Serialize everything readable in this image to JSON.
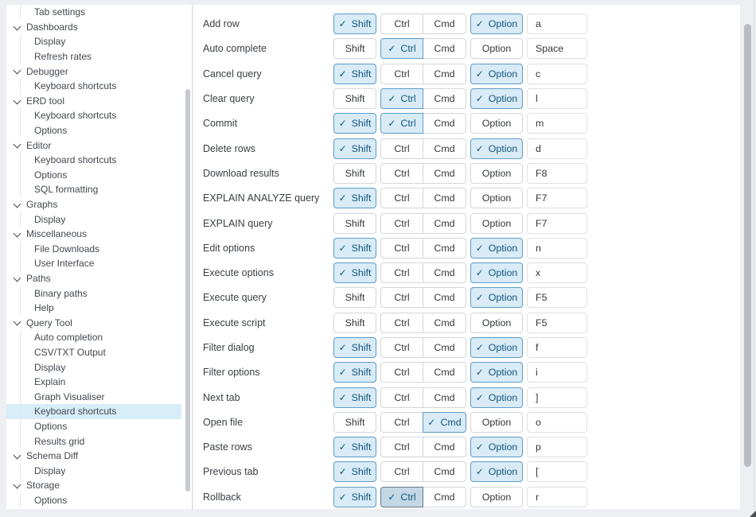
{
  "sidebar": {
    "items": [
      {
        "label": "Tab settings",
        "type": "child",
        "selected": false
      },
      {
        "label": "Dashboards",
        "type": "parent",
        "selected": false
      },
      {
        "label": "Display",
        "type": "child",
        "selected": false
      },
      {
        "label": "Refresh rates",
        "type": "child",
        "selected": false
      },
      {
        "label": "Debugger",
        "type": "parent",
        "selected": false
      },
      {
        "label": "Keyboard shortcuts",
        "type": "child",
        "selected": false
      },
      {
        "label": "ERD tool",
        "type": "parent",
        "selected": false
      },
      {
        "label": "Keyboard shortcuts",
        "type": "child",
        "selected": false
      },
      {
        "label": "Options",
        "type": "child",
        "selected": false
      },
      {
        "label": "Editor",
        "type": "parent",
        "selected": false
      },
      {
        "label": "Keyboard shortcuts",
        "type": "child",
        "selected": false
      },
      {
        "label": "Options",
        "type": "child",
        "selected": false
      },
      {
        "label": "SQL formatting",
        "type": "child",
        "selected": false
      },
      {
        "label": "Graphs",
        "type": "parent",
        "selected": false
      },
      {
        "label": "Display",
        "type": "child",
        "selected": false
      },
      {
        "label": "Miscellaneous",
        "type": "parent",
        "selected": false
      },
      {
        "label": "File Downloads",
        "type": "child",
        "selected": false
      },
      {
        "label": "User Interface",
        "type": "child",
        "selected": false
      },
      {
        "label": "Paths",
        "type": "parent",
        "selected": false
      },
      {
        "label": "Binary paths",
        "type": "child",
        "selected": false
      },
      {
        "label": "Help",
        "type": "child",
        "selected": false
      },
      {
        "label": "Query Tool",
        "type": "parent",
        "selected": false
      },
      {
        "label": "Auto completion",
        "type": "child",
        "selected": false
      },
      {
        "label": "CSV/TXT Output",
        "type": "child",
        "selected": false
      },
      {
        "label": "Display",
        "type": "child",
        "selected": false
      },
      {
        "label": "Explain",
        "type": "child",
        "selected": false
      },
      {
        "label": "Graph Visualiser",
        "type": "child",
        "selected": false
      },
      {
        "label": "Keyboard shortcuts",
        "type": "child",
        "selected": true
      },
      {
        "label": "Options",
        "type": "child",
        "selected": false
      },
      {
        "label": "Results grid",
        "type": "child",
        "selected": false
      },
      {
        "label": "Schema Diff",
        "type": "parent",
        "selected": false
      },
      {
        "label": "Display",
        "type": "child",
        "selected": false
      },
      {
        "label": "Storage",
        "type": "parent",
        "selected": false
      },
      {
        "label": "Options",
        "type": "child",
        "selected": false
      }
    ]
  },
  "shortcuts": {
    "modifier_labels": {
      "shift": "Shift",
      "ctrl": "Ctrl",
      "cmd": "Cmd",
      "option": "Option"
    },
    "check_glyph": "✓",
    "rows": [
      {
        "label": "Add row",
        "shift": true,
        "ctrl": false,
        "cmd": false,
        "option": true,
        "key": "a",
        "ctrl_active": false
      },
      {
        "label": "Auto complete",
        "shift": false,
        "ctrl": true,
        "cmd": false,
        "option": false,
        "key": "Space",
        "ctrl_active": false
      },
      {
        "label": "Cancel query",
        "shift": true,
        "ctrl": false,
        "cmd": false,
        "option": true,
        "key": "c",
        "ctrl_active": false
      },
      {
        "label": "Clear query",
        "shift": false,
        "ctrl": true,
        "cmd": false,
        "option": true,
        "key": "l",
        "ctrl_active": false
      },
      {
        "label": "Commit",
        "shift": true,
        "ctrl": true,
        "cmd": false,
        "option": false,
        "key": "m",
        "ctrl_active": false
      },
      {
        "label": "Delete rows",
        "shift": true,
        "ctrl": false,
        "cmd": false,
        "option": true,
        "key": "d",
        "ctrl_active": false
      },
      {
        "label": "Download results",
        "shift": false,
        "ctrl": false,
        "cmd": false,
        "option": false,
        "key": "F8",
        "ctrl_active": false
      },
      {
        "label": "EXPLAIN ANALYZE query",
        "shift": true,
        "ctrl": false,
        "cmd": false,
        "option": false,
        "key": "F7",
        "ctrl_active": false
      },
      {
        "label": "EXPLAIN query",
        "shift": false,
        "ctrl": false,
        "cmd": false,
        "option": false,
        "key": "F7",
        "ctrl_active": false
      },
      {
        "label": "Edit options",
        "shift": true,
        "ctrl": false,
        "cmd": false,
        "option": true,
        "key": "n",
        "ctrl_active": false
      },
      {
        "label": "Execute options",
        "shift": true,
        "ctrl": false,
        "cmd": false,
        "option": true,
        "key": "x",
        "ctrl_active": false
      },
      {
        "label": "Execute query",
        "shift": false,
        "ctrl": false,
        "cmd": false,
        "option": true,
        "key": "F5",
        "ctrl_active": false
      },
      {
        "label": "Execute script",
        "shift": false,
        "ctrl": false,
        "cmd": false,
        "option": false,
        "key": "F5",
        "ctrl_active": false
      },
      {
        "label": "Filter dialog",
        "shift": true,
        "ctrl": false,
        "cmd": false,
        "option": true,
        "key": "f",
        "ctrl_active": false
      },
      {
        "label": "Filter options",
        "shift": true,
        "ctrl": false,
        "cmd": false,
        "option": true,
        "key": "i",
        "ctrl_active": false
      },
      {
        "label": "Next tab",
        "shift": true,
        "ctrl": false,
        "cmd": false,
        "option": true,
        "key": "]",
        "ctrl_active": false
      },
      {
        "label": "Open file",
        "shift": false,
        "ctrl": false,
        "cmd": true,
        "option": false,
        "key": "o",
        "ctrl_active": false
      },
      {
        "label": "Paste rows",
        "shift": true,
        "ctrl": false,
        "cmd": false,
        "option": true,
        "key": "p",
        "ctrl_active": false
      },
      {
        "label": "Previous tab",
        "shift": true,
        "ctrl": false,
        "cmd": false,
        "option": true,
        "key": "[",
        "ctrl_active": false
      },
      {
        "label": "Rollback",
        "shift": true,
        "ctrl": true,
        "cmd": false,
        "option": false,
        "key": "r",
        "ctrl_active": true
      }
    ]
  },
  "colors": {
    "accent": "#13567d",
    "checked_bg": "#d8ebf7",
    "checked_border": "#5e9bc8",
    "checked_active_bg": "#c3d7e5",
    "sidebar_selected_bg": "#d7edf9",
    "chrome_bg": "#edeff3"
  }
}
